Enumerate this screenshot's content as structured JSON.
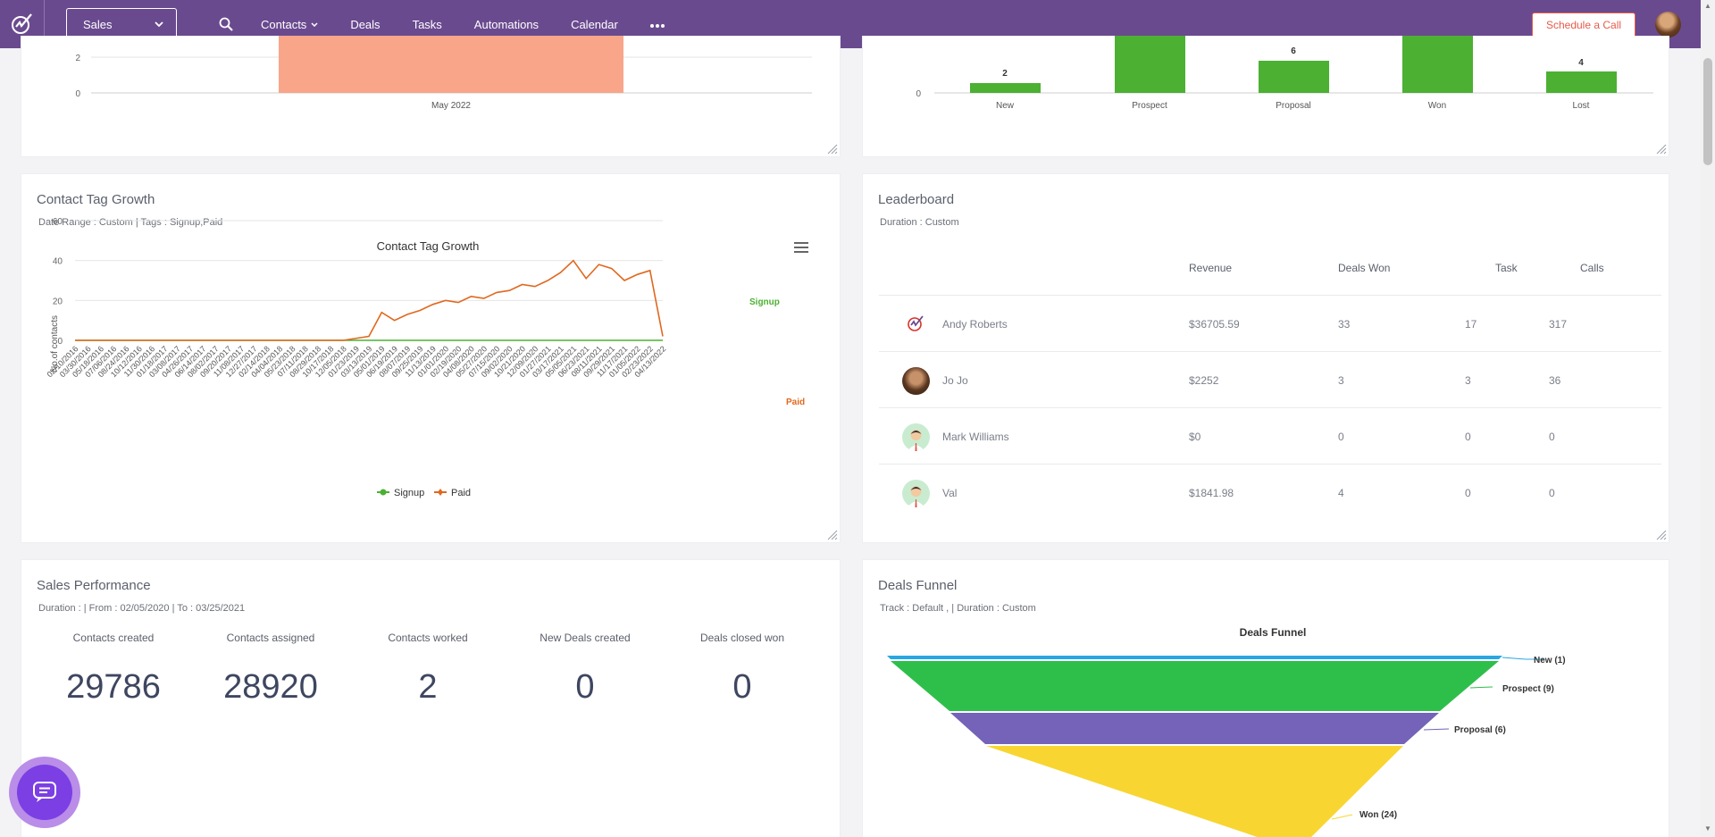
{
  "header": {
    "module_select": "Sales",
    "nav": [
      {
        "label": "Contacts",
        "has_dropdown": true
      },
      {
        "label": "Deals"
      },
      {
        "label": "Tasks"
      },
      {
        "label": "Automations"
      },
      {
        "label": "Calendar"
      }
    ],
    "more_icon": "ellipsis-icon",
    "schedule_call": "Schedule a Call",
    "brand_color": "#6a4a8f"
  },
  "top_left_chart": {
    "type": "bar",
    "categories": [
      "May 2022"
    ],
    "y_ticks": [
      "2",
      "0"
    ],
    "bar_color": "#f9a589"
  },
  "top_right_chart": {
    "type": "bar",
    "categories": [
      "New",
      "Prospect",
      "Proposal",
      "Won",
      "Lost"
    ],
    "value_labels": [
      "2",
      "",
      "6",
      "",
      "4"
    ],
    "y_ticks": [
      "0"
    ],
    "bar_color": "#4cb033"
  },
  "contact_tag_growth": {
    "title": "Contact Tag Growth",
    "subtitle": "Date Range : Custom | Tags : Signup,Paid",
    "menu_icon": "hamburger-menu-icon",
    "chart_data": {
      "type": "line",
      "title": "Contact Tag Growth",
      "ylabel": "No.of contacts",
      "ylim": [
        0,
        60
      ],
      "y_ticks": [
        0,
        20,
        40,
        60
      ],
      "x_ticks": [
        "02/10/2016",
        "03/30/2016",
        "05/18/2016",
        "07/06/2016",
        "08/24/2016",
        "10/12/2016",
        "11/30/2016",
        "01/18/2017",
        "03/08/2017",
        "04/26/2017",
        "06/14/2017",
        "08/02/2017",
        "09/20/2017",
        "11/08/2017",
        "12/27/2017",
        "02/14/2018",
        "04/04/2018",
        "05/23/2018",
        "07/11/2018",
        "08/29/2018",
        "10/17/2018",
        "12/05/2018",
        "01/23/2019",
        "03/13/2019",
        "05/01/2019",
        "06/19/2019",
        "08/07/2019",
        "09/25/2019",
        "11/13/2019",
        "01/01/2020",
        "02/19/2020",
        "04/08/2020",
        "05/27/2020",
        "07/15/2020",
        "09/02/2020",
        "10/21/2020",
        "12/09/2020",
        "01/27/2021",
        "03/17/2021",
        "05/05/2021",
        "06/23/2021",
        "08/11/2021",
        "09/29/2021",
        "11/17/2021",
        "01/05/2022",
        "02/23/2022",
        "04/13/2022"
      ],
      "series": [
        {
          "name": "Signup",
          "color": "#4cb033",
          "values": [
            0,
            0,
            0,
            0,
            0,
            0,
            0,
            0,
            0,
            0,
            0,
            0,
            0,
            0,
            0,
            0,
            0,
            0,
            0,
            0,
            0,
            0,
            0,
            0,
            0,
            0,
            0,
            0,
            0,
            0,
            0,
            0,
            0,
            0,
            0,
            0,
            0,
            0,
            0,
            0,
            0,
            0,
            0,
            0,
            0,
            0,
            0
          ]
        },
        {
          "name": "Paid",
          "color": "#e0681f",
          "values": [
            0,
            0,
            0,
            0,
            0,
            0,
            0,
            0,
            0,
            0,
            0,
            0,
            0,
            0,
            0,
            0,
            0,
            0,
            0,
            0,
            0,
            0,
            1,
            2,
            14,
            10,
            13,
            15,
            18,
            20,
            19,
            22,
            21,
            24,
            25,
            28,
            27,
            30,
            34,
            40,
            31,
            38,
            36,
            30,
            33,
            35,
            2
          ]
        }
      ],
      "legend": "bottom",
      "annotations": [
        "Signup",
        "Paid"
      ]
    }
  },
  "leaderboard": {
    "title": "Leaderboard",
    "subtitle": "Duration : Custom",
    "columns": [
      "Revenue",
      "Deals Won",
      "Task",
      "Calls"
    ],
    "rows": [
      {
        "name": "Andy Roberts",
        "avatar": "logo-avatar",
        "revenue": "$36705.59",
        "deals_won": "33",
        "task": "17",
        "calls": "317"
      },
      {
        "name": "Jo Jo",
        "avatar": "photo-avatar",
        "revenue": "$2252",
        "deals_won": "3",
        "task": "3",
        "calls": "36"
      },
      {
        "name": "Mark Williams",
        "avatar": "person-avatar",
        "revenue": "$0",
        "deals_won": "0",
        "task": "0",
        "calls": "0"
      },
      {
        "name": "Val",
        "avatar": "person-avatar",
        "revenue": "$1841.98",
        "deals_won": "4",
        "task": "0",
        "calls": "0"
      }
    ]
  },
  "sales_performance": {
    "title": "Sales Performance",
    "subtitle": "Duration : | From : 02/05/2020 | To : 03/25/2021",
    "metrics": [
      {
        "label": "Contacts created",
        "value": "29786"
      },
      {
        "label": "Contacts assigned",
        "value": "28920"
      },
      {
        "label": "Contacts worked",
        "value": "2"
      },
      {
        "label": "New Deals created",
        "value": "0"
      },
      {
        "label": "Deals closed won",
        "value": "0"
      }
    ]
  },
  "deals_funnel": {
    "title": "Deals Funnel",
    "subtitle": "Track : Default ,  | Duration : Custom",
    "chart_title": "Deals Funnel",
    "stages": [
      {
        "label": "New (1)",
        "color": "#29a7e1"
      },
      {
        "label": "Prospect (9)",
        "color": "#2ebf4b"
      },
      {
        "label": "Proposal (6)",
        "color": "#7463b8"
      },
      {
        "label": "Won (24)",
        "color": "#f8d531"
      }
    ]
  },
  "chat_widget": {
    "icon": "chat-bubble-icon"
  }
}
